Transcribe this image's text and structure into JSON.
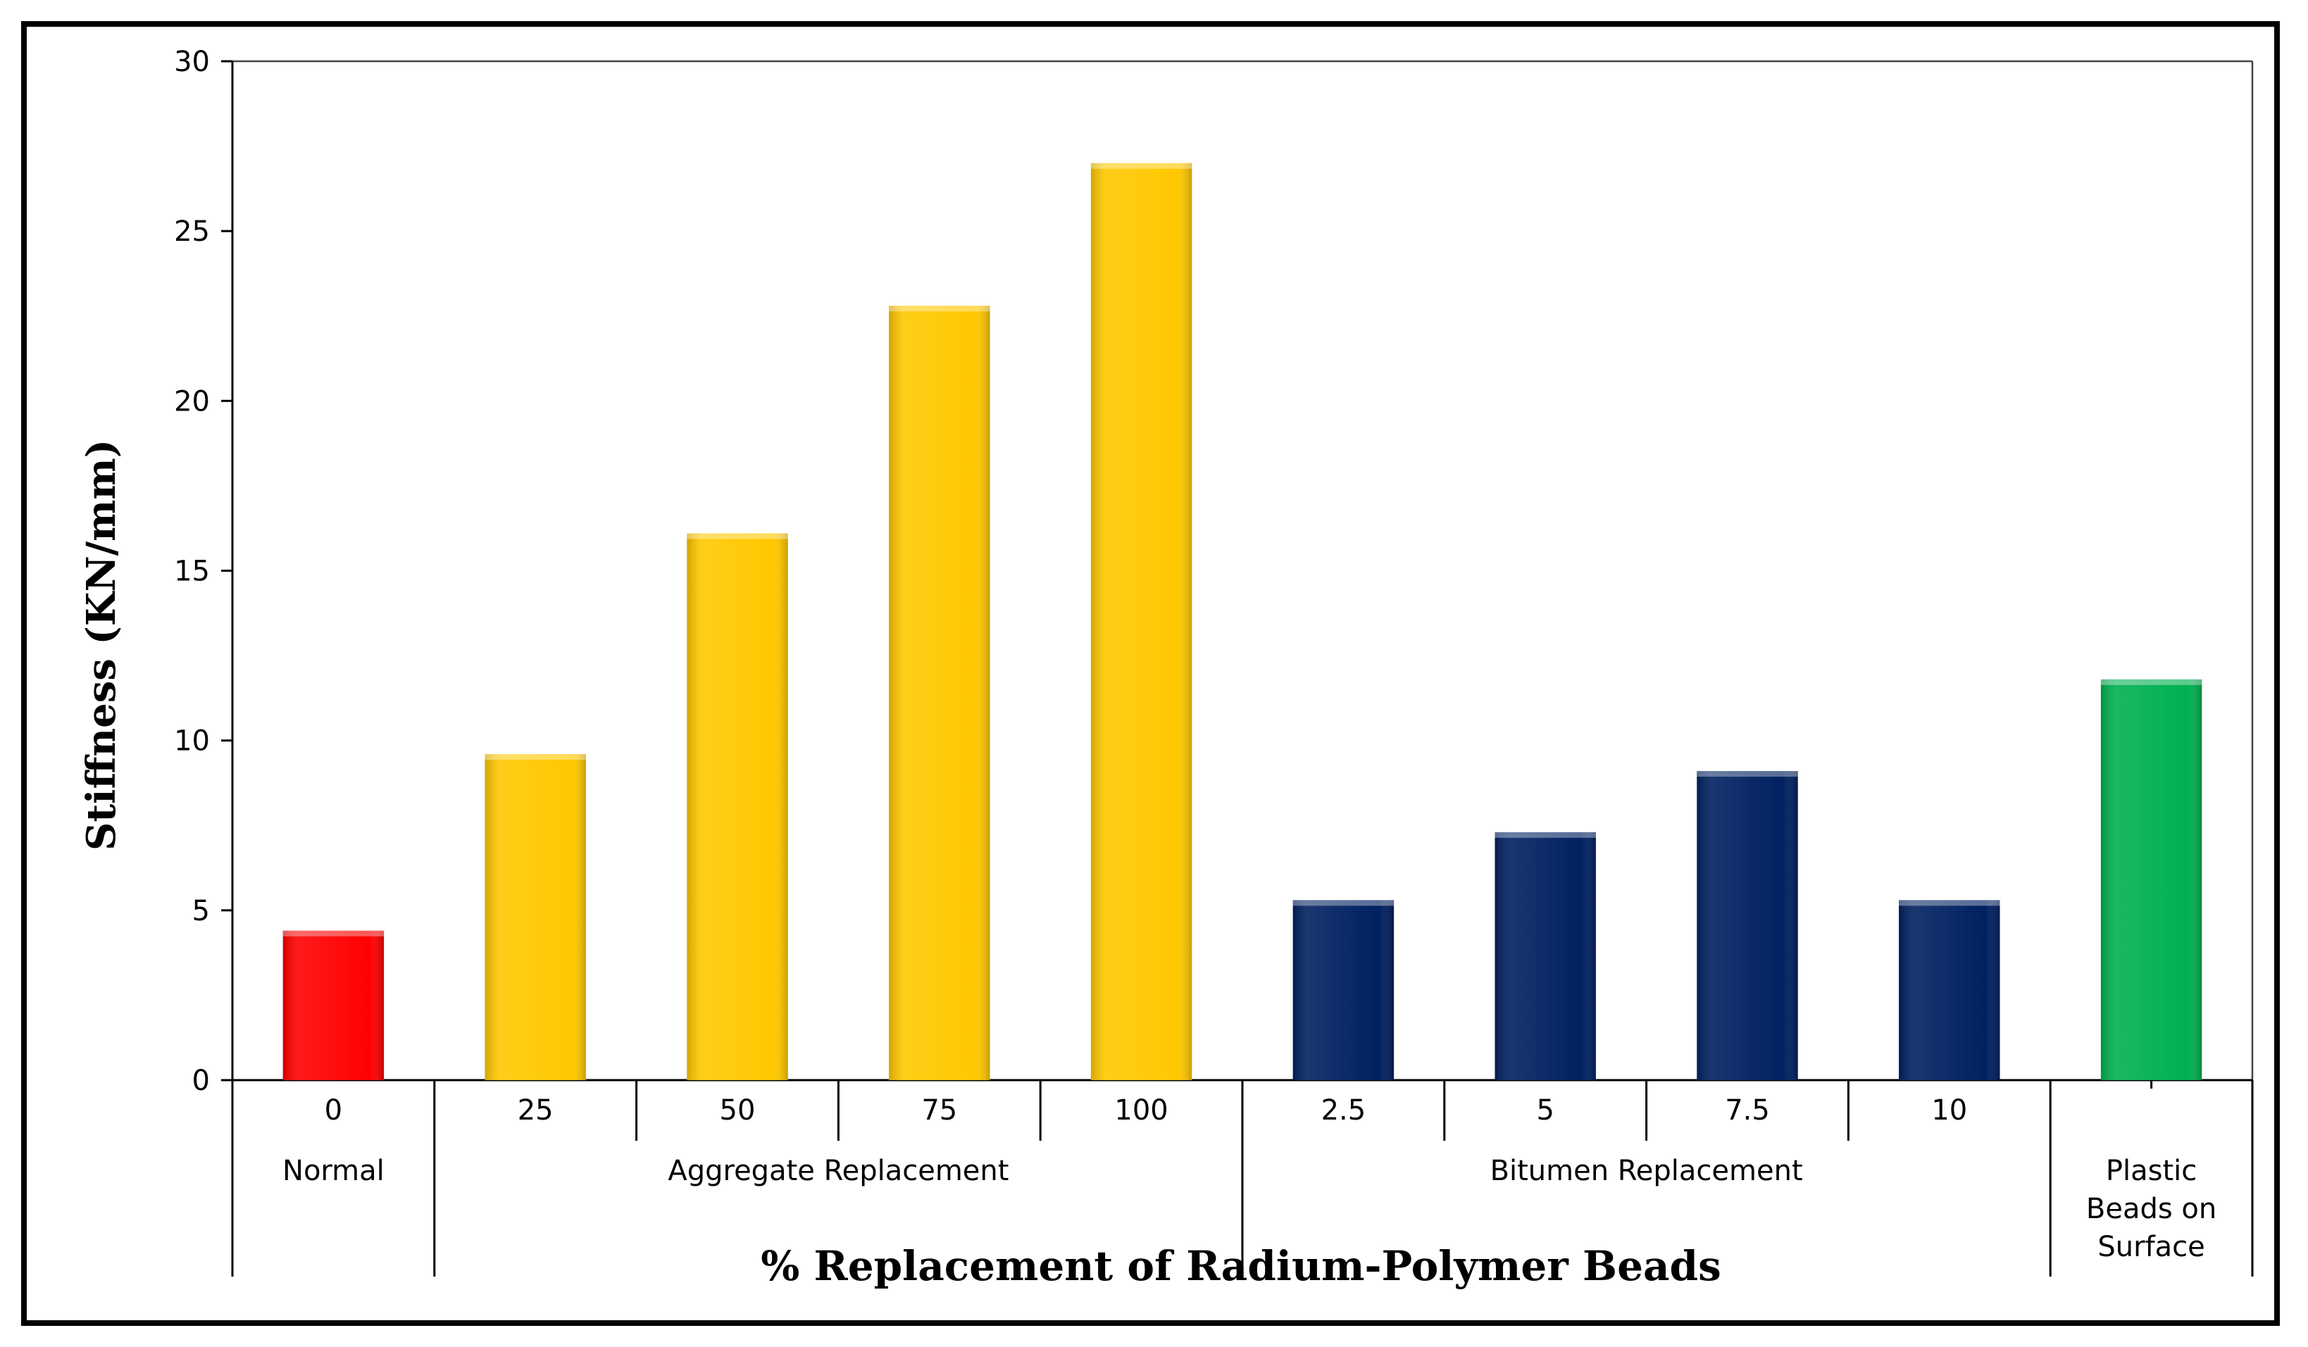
{
  "chart_data": {
    "type": "bar",
    "ylabel": "Stiffness (KN/mm)",
    "xlabel": "% Replacement of Radium-Polymer Beads",
    "ylim": [
      0,
      30
    ],
    "yticks": [
      0,
      5,
      10,
      15,
      20,
      25,
      30
    ],
    "categories": [
      "0",
      "25",
      "50",
      "75",
      "100",
      "2.5",
      "5",
      "7.5",
      "10",
      ""
    ],
    "values": [
      4.4,
      9.6,
      16.1,
      22.8,
      27.0,
      5.3,
      7.3,
      9.1,
      5.3,
      11.8
    ],
    "bar_colors": [
      "#ff0000",
      "#ffc800",
      "#ffc800",
      "#ffc800",
      "#ffc800",
      "#002060",
      "#002060",
      "#002060",
      "#002060",
      "#00b050"
    ],
    "groups": [
      {
        "label": "Normal",
        "start": 0,
        "end": 0
      },
      {
        "label": "Aggregate Replacement",
        "start": 1,
        "end": 4
      },
      {
        "label": "Bitumen Replacement",
        "start": 5,
        "end": 8
      },
      {
        "label": "Plastic Beads on Surface",
        "lines": [
          "Plastic",
          "Beads on",
          "Surface"
        ],
        "start": 9,
        "end": 9
      }
    ],
    "grid": false,
    "legend": "none"
  }
}
